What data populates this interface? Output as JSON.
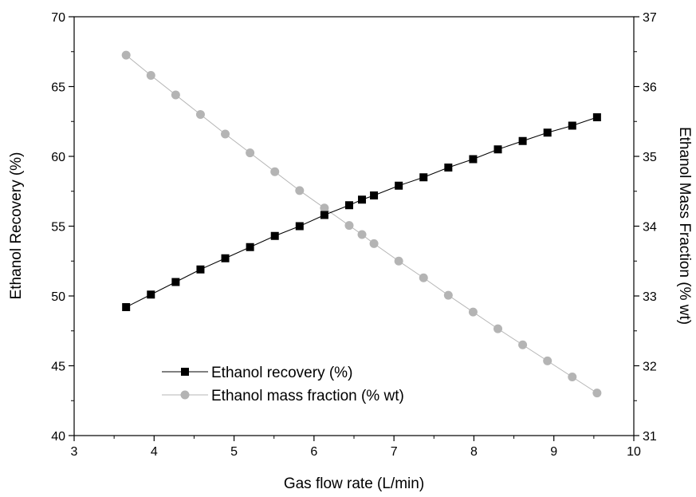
{
  "chart_data": {
    "type": "line",
    "xlabel": "Gas flow rate (L/min)",
    "ylabel": "Ethanol Recovery (%)",
    "y2label": "Ethanol Mass Fraction (% wt)",
    "xlim": [
      3,
      10
    ],
    "ylim": [
      40,
      70
    ],
    "y2lim": [
      31,
      37
    ],
    "x_ticks": [
      "3",
      "4",
      "5",
      "6",
      "7",
      "8",
      "9",
      "10"
    ],
    "y_ticks": [
      "40",
      "45",
      "50",
      "55",
      "60",
      "65",
      "70"
    ],
    "y2_ticks": [
      "31",
      "32",
      "33",
      "34",
      "35",
      "36",
      "37"
    ],
    "grid": false,
    "legend_position": "bottom-left",
    "series": [
      {
        "name": "Ethanol recovery (%)",
        "axis": "left",
        "marker": "square",
        "color": "#000000",
        "x": [
          3.65,
          3.96,
          4.27,
          4.58,
          4.89,
          5.2,
          5.51,
          5.82,
          6.13,
          6.44,
          6.6,
          6.75,
          7.06,
          7.37,
          7.68,
          7.99,
          8.3,
          8.61,
          8.92,
          9.23,
          9.54
        ],
        "values": [
          49.2,
          50.1,
          51.0,
          51.9,
          52.7,
          53.5,
          54.3,
          55.0,
          55.8,
          56.5,
          56.9,
          57.2,
          57.9,
          58.5,
          59.2,
          59.8,
          60.5,
          61.1,
          61.7,
          62.2,
          62.8
        ]
      },
      {
        "name": "Ethanol mass fraction (% wt)",
        "axis": "right",
        "marker": "circle",
        "color": "#b4b4b4",
        "x": [
          3.65,
          3.96,
          4.27,
          4.58,
          4.89,
          5.2,
          5.51,
          5.82,
          6.13,
          6.44,
          6.6,
          6.75,
          7.06,
          7.37,
          7.68,
          7.99,
          8.3,
          8.61,
          8.92,
          9.23,
          9.54
        ],
        "values": [
          36.45,
          36.16,
          35.88,
          35.6,
          35.32,
          35.05,
          34.78,
          34.51,
          34.26,
          34.01,
          33.88,
          33.75,
          33.5,
          33.26,
          33.01,
          32.77,
          32.53,
          32.3,
          32.07,
          31.84,
          31.61
        ]
      }
    ]
  }
}
